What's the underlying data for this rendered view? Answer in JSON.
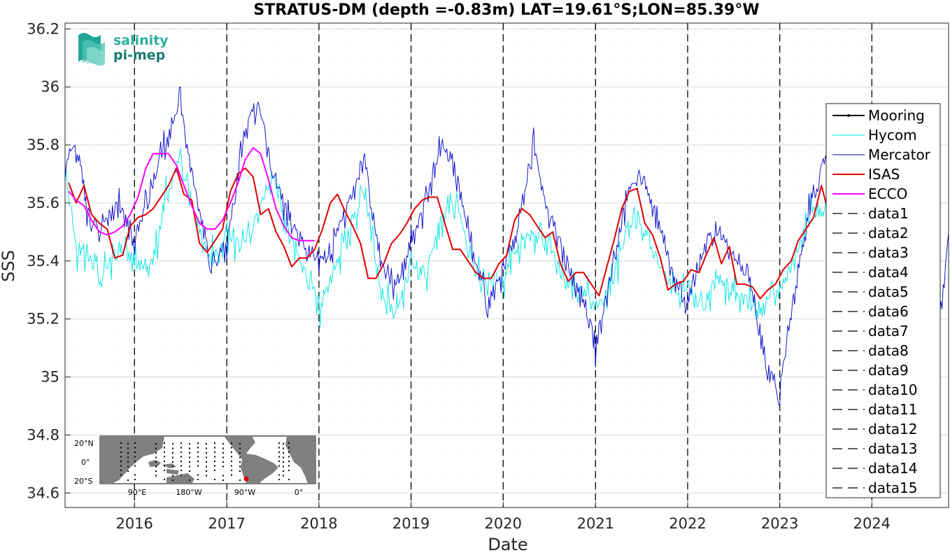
{
  "chart_data": {
    "type": "line",
    "title": "STRATUS-DM (depth =-0.83m) LAT=19.61°S;LON=85.39°W",
    "xlabel": "Date",
    "ylabel": "SSS",
    "xlim": [
      "2015-04-01",
      "2024-10-31"
    ],
    "ylim": [
      34.55,
      36.22
    ],
    "x_ticks": [
      "2016",
      "2017",
      "2018",
      "2019",
      "2020",
      "2021",
      "2022",
      "2023",
      "2024"
    ],
    "y_ticks": [
      "34.6",
      "34.8",
      "35",
      "35.2",
      "35.4",
      "35.6",
      "35.8",
      "36",
      "36.2"
    ],
    "grid": "on",
    "legend_position": "right",
    "colors": {
      "Mooring": "#000000",
      "Hycom": "#00e5e5",
      "Mercator": "#0000cc",
      "ISAS": "#e00000",
      "ECCO": "#ff00ff",
      "data": "#000000"
    },
    "year_lines": [
      "2016-01-01",
      "2017-01-01",
      "2018-01-01",
      "2019-01-01",
      "2020-01-01",
      "2021-01-01",
      "2022-01-01",
      "2023-01-01",
      "2024-01-01"
    ],
    "series": [
      {
        "name": "Mooring",
        "x": [],
        "y": []
      },
      {
        "name": "Hycom",
        "x": [
          "2015-04-01",
          "2015-05-15",
          "2015-07-01",
          "2015-09-01",
          "2015-11-01",
          "2016-01-01",
          "2016-03-01",
          "2016-05-01",
          "2016-07-01",
          "2016-09-01",
          "2016-11-01",
          "2017-01-01",
          "2017-03-01",
          "2017-05-01",
          "2017-07-01",
          "2017-09-01",
          "2017-11-01",
          "2018-01-01",
          "2018-03-01",
          "2018-05-01",
          "2018-07-01",
          "2018-09-01",
          "2018-11-01",
          "2019-01-01",
          "2019-03-01",
          "2019-05-01",
          "2019-07-01",
          "2019-09-01",
          "2019-11-01",
          "2020-01-01",
          "2020-03-01",
          "2020-05-01",
          "2020-07-01",
          "2020-09-01",
          "2020-11-01",
          "2021-01-01",
          "2021-03-01",
          "2021-05-01",
          "2021-07-01",
          "2021-09-01",
          "2021-11-01",
          "2022-01-01",
          "2022-03-01",
          "2022-05-01",
          "2022-07-01",
          "2022-09-01",
          "2022-11-01",
          "2023-01-01",
          "2023-03-01",
          "2023-05-01",
          "2023-07-01"
        ],
        "y": [
          35.7,
          35.45,
          35.4,
          35.35,
          35.45,
          35.4,
          35.35,
          35.6,
          35.75,
          35.55,
          35.4,
          35.5,
          35.45,
          35.55,
          35.7,
          35.5,
          35.35,
          35.25,
          35.35,
          35.5,
          35.65,
          35.3,
          35.2,
          35.4,
          35.35,
          35.55,
          35.6,
          35.4,
          35.3,
          35.35,
          35.45,
          35.5,
          35.45,
          35.35,
          35.3,
          35.25,
          35.3,
          35.5,
          35.55,
          35.4,
          35.3,
          35.3,
          35.25,
          35.35,
          35.3,
          35.25,
          35.25,
          35.3,
          35.4,
          35.55,
          35.6
        ]
      },
      {
        "name": "Mercator",
        "x": [
          "2015-04-01",
          "2015-05-15",
          "2015-07-01",
          "2015-09-01",
          "2015-11-01",
          "2016-01-01",
          "2016-03-01",
          "2016-05-01",
          "2016-07-01",
          "2016-09-01",
          "2016-11-01",
          "2017-01-01",
          "2017-03-01",
          "2017-05-01",
          "2017-07-01",
          "2017-09-01",
          "2017-11-01",
          "2018-01-01",
          "2018-03-01",
          "2018-05-01",
          "2018-07-01",
          "2018-09-01",
          "2018-11-01",
          "2019-01-01",
          "2019-03-01",
          "2019-05-01",
          "2019-07-01",
          "2019-09-01",
          "2019-11-01",
          "2020-01-01",
          "2020-03-01",
          "2020-05-01",
          "2020-07-01",
          "2020-09-01",
          "2020-11-01",
          "2021-01-01",
          "2021-03-01",
          "2021-05-01",
          "2021-07-01",
          "2021-09-01",
          "2021-11-01",
          "2022-01-01",
          "2022-03-01",
          "2022-05-01",
          "2022-07-01",
          "2022-09-01",
          "2022-11-01",
          "2023-01-01",
          "2023-03-01",
          "2023-05-01",
          "2023-07-01",
          "2024-10-01",
          "2024-10-31"
        ],
        "y": [
          35.75,
          35.8,
          35.55,
          35.5,
          35.6,
          35.45,
          35.65,
          35.8,
          35.95,
          35.6,
          35.4,
          35.45,
          35.8,
          35.95,
          35.7,
          35.55,
          35.45,
          35.4,
          35.45,
          35.6,
          35.75,
          35.4,
          35.3,
          35.45,
          35.6,
          35.8,
          35.7,
          35.45,
          35.25,
          35.35,
          35.55,
          35.8,
          35.55,
          35.4,
          35.3,
          35.1,
          35.35,
          35.6,
          35.7,
          35.55,
          35.35,
          35.25,
          35.45,
          35.5,
          35.4,
          35.35,
          35.05,
          34.95,
          35.3,
          35.6,
          35.75,
          35.2,
          35.5
        ]
      },
      {
        "name": "ISAS",
        "x": [
          "2015-04-15",
          "2015-05-15",
          "2015-06-15",
          "2015-07-15",
          "2015-08-15",
          "2015-09-15",
          "2015-10-15",
          "2015-11-15",
          "2015-12-15",
          "2016-01-15",
          "2016-02-15",
          "2016-03-15",
          "2016-04-15",
          "2016-05-15",
          "2016-06-15",
          "2016-07-15",
          "2016-08-15",
          "2016-09-15",
          "2016-10-15",
          "2016-11-15",
          "2016-12-15",
          "2017-01-15",
          "2017-02-15",
          "2017-03-15",
          "2017-04-15",
          "2017-05-15",
          "2017-06-15",
          "2017-07-15",
          "2017-08-15",
          "2017-09-15",
          "2017-10-15",
          "2017-11-15",
          "2017-12-15",
          "2018-01-15",
          "2018-02-15",
          "2018-03-15",
          "2018-04-15",
          "2018-05-15",
          "2018-06-15",
          "2018-07-15",
          "2018-08-15",
          "2018-09-15",
          "2018-10-15",
          "2018-11-15",
          "2018-12-15",
          "2019-01-15",
          "2019-02-15",
          "2019-03-15",
          "2019-04-15",
          "2019-05-15",
          "2019-06-15",
          "2019-07-15",
          "2019-08-15",
          "2019-09-15",
          "2019-10-15",
          "2019-11-15",
          "2019-12-15",
          "2020-01-15",
          "2020-02-15",
          "2020-03-15",
          "2020-04-15",
          "2020-05-15",
          "2020-06-15",
          "2020-07-15",
          "2020-08-15",
          "2020-09-15",
          "2020-10-15",
          "2020-11-15",
          "2020-12-15",
          "2021-01-15",
          "2021-02-15",
          "2021-03-15",
          "2021-04-15",
          "2021-05-15",
          "2021-06-15",
          "2021-07-15",
          "2021-08-15",
          "2021-09-15",
          "2021-10-15",
          "2021-11-15",
          "2021-12-15",
          "2022-01-15",
          "2022-02-15",
          "2022-03-15",
          "2022-04-15",
          "2022-05-15",
          "2022-06-15",
          "2022-07-15",
          "2022-08-15",
          "2022-09-15",
          "2022-10-15",
          "2022-11-15",
          "2022-12-15",
          "2023-01-15",
          "2023-02-15",
          "2023-03-15",
          "2023-04-15",
          "2023-05-15",
          "2023-06-15",
          "2023-07-15"
        ],
        "y": [
          35.67,
          35.6,
          35.66,
          35.56,
          35.53,
          35.51,
          35.41,
          35.42,
          35.52,
          35.55,
          35.56,
          35.58,
          35.62,
          35.66,
          35.72,
          35.63,
          35.61,
          35.46,
          35.43,
          35.47,
          35.51,
          35.64,
          35.7,
          35.72,
          35.69,
          35.56,
          35.58,
          35.5,
          35.45,
          35.38,
          35.41,
          35.41,
          35.44,
          35.51,
          35.6,
          35.63,
          35.57,
          35.52,
          35.46,
          35.34,
          35.34,
          35.39,
          35.46,
          35.49,
          35.53,
          35.58,
          35.61,
          35.62,
          35.62,
          35.53,
          35.44,
          35.44,
          35.4,
          35.36,
          35.34,
          35.34,
          35.39,
          35.42,
          35.54,
          35.58,
          35.56,
          35.52,
          35.48,
          35.5,
          35.39,
          35.33,
          35.36,
          35.36,
          35.32,
          35.28,
          35.38,
          35.47,
          35.58,
          35.64,
          35.65,
          35.53,
          35.49,
          35.41,
          35.3,
          35.32,
          35.33,
          35.37,
          35.36,
          35.42,
          35.48,
          35.39,
          35.45,
          35.32,
          35.32,
          35.31,
          35.27,
          35.3,
          35.32,
          35.37,
          35.4,
          35.47,
          35.51,
          35.55,
          35.66,
          35.56
        ]
      },
      {
        "name": "ECCO",
        "x": [
          "2015-04-15",
          "2015-05-15",
          "2015-06-15",
          "2015-07-15",
          "2015-08-15",
          "2015-09-15",
          "2015-10-15",
          "2015-11-15",
          "2015-12-15",
          "2016-01-15",
          "2016-02-15",
          "2016-03-15",
          "2016-04-15",
          "2016-05-15",
          "2016-06-15",
          "2016-07-15",
          "2016-08-15",
          "2016-09-15",
          "2016-10-15",
          "2016-11-15",
          "2016-12-15",
          "2017-01-15",
          "2017-02-15",
          "2017-03-15",
          "2017-04-15",
          "2017-05-15",
          "2017-06-15",
          "2017-07-15",
          "2017-08-15",
          "2017-09-15",
          "2017-10-15",
          "2017-11-15",
          "2017-12-15"
        ],
        "y": [
          35.64,
          35.61,
          35.59,
          35.54,
          35.5,
          35.49,
          35.5,
          35.52,
          35.56,
          35.62,
          35.72,
          35.77,
          35.77,
          35.77,
          35.73,
          35.66,
          35.59,
          35.53,
          35.51,
          35.51,
          35.54,
          35.6,
          35.67,
          35.75,
          35.79,
          35.77,
          35.68,
          35.58,
          35.52,
          35.48,
          35.47,
          35.47,
          35.47
        ]
      },
      {
        "name": "data1"
      },
      {
        "name": "data2"
      },
      {
        "name": "data3"
      },
      {
        "name": "data4"
      },
      {
        "name": "data5"
      },
      {
        "name": "data6"
      },
      {
        "name": "data7"
      },
      {
        "name": "data8"
      },
      {
        "name": "data9"
      },
      {
        "name": "data10"
      },
      {
        "name": "data11"
      },
      {
        "name": "data12"
      },
      {
        "name": "data13"
      },
      {
        "name": "data14"
      },
      {
        "name": "data15"
      }
    ]
  },
  "logo": {
    "line1": "salinity",
    "line2": "pi-mep"
  },
  "inset_map": {
    "lat_labels": [
      "20°N",
      "0°",
      "20°S"
    ],
    "lon_labels": [
      "90°E",
      "180°W",
      "90°W",
      "0°"
    ]
  }
}
